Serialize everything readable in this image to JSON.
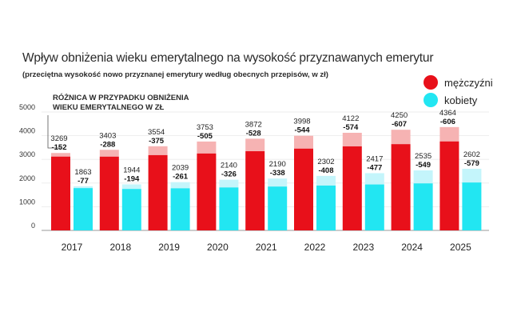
{
  "title": "Wpływ obniżenia wieku emerytalnego na wysokość przyznawanych emerytur",
  "subtitle": "(przeciętna wysokość nowo przyznanej emerytury według obecnych przepisów, w zł)",
  "annotation": {
    "line1": "RÓŻNICA W PRZYPADKU OBNIŻENIA",
    "line2": "WIEKU EMERYTALNEGO W ZŁ"
  },
  "legend": [
    {
      "label": "mężczyźni",
      "color": "#e8101a"
    },
    {
      "label": "kobiety",
      "color": "#22e6f2"
    }
  ],
  "colors": {
    "men": "#e8101a",
    "men_diff": "#f6b3b3",
    "women": "#22e6f2",
    "women_diff": "#c4f5fb",
    "grid": "#e9e9e9",
    "axis": "#9a9a9a"
  },
  "chart_data": {
    "type": "bar",
    "categories": [
      "2017",
      "2018",
      "2019",
      "2020",
      "2021",
      "2022",
      "2023",
      "2024",
      "2025"
    ],
    "yticks": [
      "0",
      "1000",
      "2000",
      "3000",
      "4000",
      "5000"
    ],
    "ylim": [
      0,
      5000
    ],
    "grid": true,
    "legend_position": "top-right",
    "series": [
      {
        "name": "mężczyźni",
        "values": [
          3269,
          3403,
          3554,
          3753,
          3872,
          3998,
          4122,
          4250,
          4364
        ],
        "value_labels": [
          "3269",
          "3403",
          "3554",
          "3753",
          "3872",
          "3998",
          "4122",
          "4250",
          "4364"
        ],
        "differences": [
          -152,
          -288,
          -375,
          -505,
          -528,
          -544,
          -574,
          -607,
          -606
        ],
        "difference_labels": [
          "-152",
          "-288",
          "-375",
          "-505",
          "-528",
          "-544",
          "-574",
          "-607",
          "-606"
        ]
      },
      {
        "name": "kobiety",
        "values": [
          1863,
          1944,
          2039,
          2140,
          2190,
          2302,
          2417,
          2535,
          2602
        ],
        "value_labels": [
          "1863",
          "1944",
          "2039",
          "2140",
          "2190",
          "2302",
          "2417",
          "2535",
          "2602"
        ],
        "differences": [
          -77,
          -194,
          -261,
          -326,
          -338,
          -408,
          -477,
          -549,
          -579
        ],
        "difference_labels": [
          "-77",
          "-194",
          "-261",
          "-326",
          "-338",
          "-408",
          "-477",
          "-549",
          "-579"
        ]
      }
    ]
  }
}
